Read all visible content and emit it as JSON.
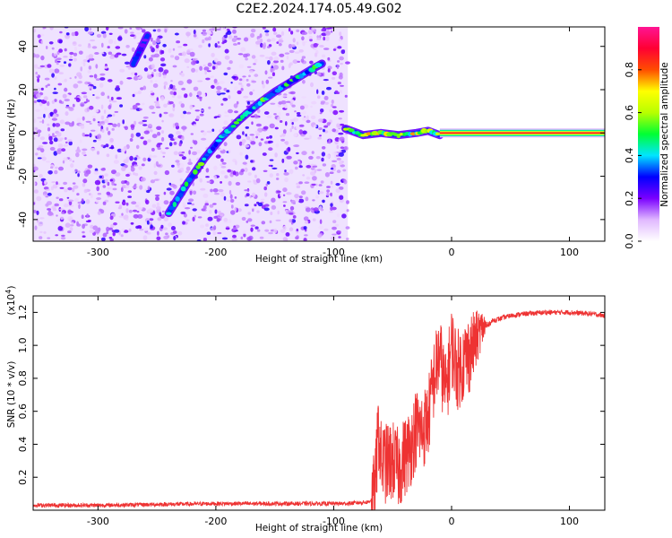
{
  "title": "C2E2.2024.174.05.49.G02",
  "chart_data": [
    {
      "type": "heatmap",
      "xlabel": "Height of straight line (km)",
      "ylabel": "Frequency (Hz)",
      "xlim": [
        -355,
        130
      ],
      "ylim": [
        -50,
        49
      ],
      "xticks": [
        -300,
        -200,
        -100,
        0,
        100
      ],
      "xtick_labels": [
        "-300",
        "-200",
        "-100",
        "0",
        "100"
      ],
      "yticks": [
        -40,
        -20,
        0,
        20,
        40
      ],
      "ytick_labels": [
        "-40",
        "-20",
        "0",
        "20",
        "40"
      ],
      "colorbar": {
        "label": "Normalized spectral amplitude",
        "range": [
          0,
          1
        ],
        "ticks": [
          0.0,
          0.2,
          0.4,
          0.6,
          0.8
        ],
        "tick_labels": [
          "0.0",
          "0.2",
          "0.4",
          "0.6",
          "0.8"
        ],
        "colors": [
          "#ffffff",
          "#e0b8ff",
          "#7a00ff",
          "#0000ff",
          "#00e5ff",
          "#00ff33",
          "#b8ff00",
          "#ffff00",
          "#ff4d00",
          "#ff0033",
          "#ff1493"
        ]
      },
      "features": [
        {
          "name": "",
          "x": [
            -240,
            -225,
            -210,
            -195,
            -180,
            -165,
            -150,
            -135,
            -120,
            -110
          ],
          "y": [
            -37,
            -24,
            -12,
            -2,
            6,
            13,
            19,
            24,
            29,
            32
          ],
          "amplitude": 0.45
        },
        {
          "name": "",
          "x": [
            -270,
            -258
          ],
          "y": [
            32,
            45
          ],
          "amplitude": 0.25
        },
        {
          "name": "",
          "x": [
            -90,
            -75,
            -60,
            -45,
            -30,
            -20,
            -10
          ],
          "y": [
            2,
            -1,
            0,
            -1,
            0,
            1,
            -1
          ],
          "amplitude": 0.6
        },
        {
          "name": "",
          "x": [
            -10,
            130
          ],
          "y": [
            0,
            0
          ],
          "amplitude": 0.9
        }
      ],
      "noise_region_x": [
        -355,
        -88
      ]
    },
    {
      "type": "line",
      "xlabel": "Height of straight line (km)",
      "ylabel": "SNR (10 * v/v)",
      "ylabel_exponent": "(x10",
      "ylabel_exponent_power": "4",
      "xlim": [
        -355,
        130
      ],
      "ylim": [
        0,
        1.3
      ],
      "xticks": [
        -300,
        -200,
        -100,
        0,
        100
      ],
      "xtick_labels": [
        "-300",
        "-200",
        "-100",
        "0",
        "100"
      ],
      "yticks": [
        0.2,
        0.4,
        0.6,
        0.8,
        1.0,
        1.2
      ],
      "ytick_labels": [
        "0.2",
        "0.4",
        "0.6",
        "0.8",
        "1.0",
        "1.2"
      ],
      "series": [
        {
          "color": "#ee3333",
          "x": [
            -355,
            -300,
            -250,
            -200,
            -150,
            -110,
            -90,
            -70,
            -65,
            -62,
            -60,
            -55,
            -50,
            -45,
            -40,
            -35,
            -30,
            -25,
            -20,
            -15,
            -10,
            -5,
            0,
            5,
            10,
            15,
            20,
            25,
            30,
            35,
            40,
            50,
            60,
            80,
            100,
            120,
            130
          ],
          "y": [
            0.03,
            0.03,
            0.035,
            0.04,
            0.04,
            0.04,
            0.04,
            0.05,
            0.1,
            0.5,
            0.3,
            0.28,
            0.3,
            0.25,
            0.32,
            0.38,
            0.5,
            0.48,
            0.55,
            0.8,
            0.95,
            0.7,
            1.0,
            0.85,
            0.9,
            0.95,
            1.02,
            1.1,
            1.12,
            1.15,
            1.16,
            1.18,
            1.19,
            1.2,
            1.2,
            1.19,
            1.18
          ]
        }
      ]
    }
  ]
}
